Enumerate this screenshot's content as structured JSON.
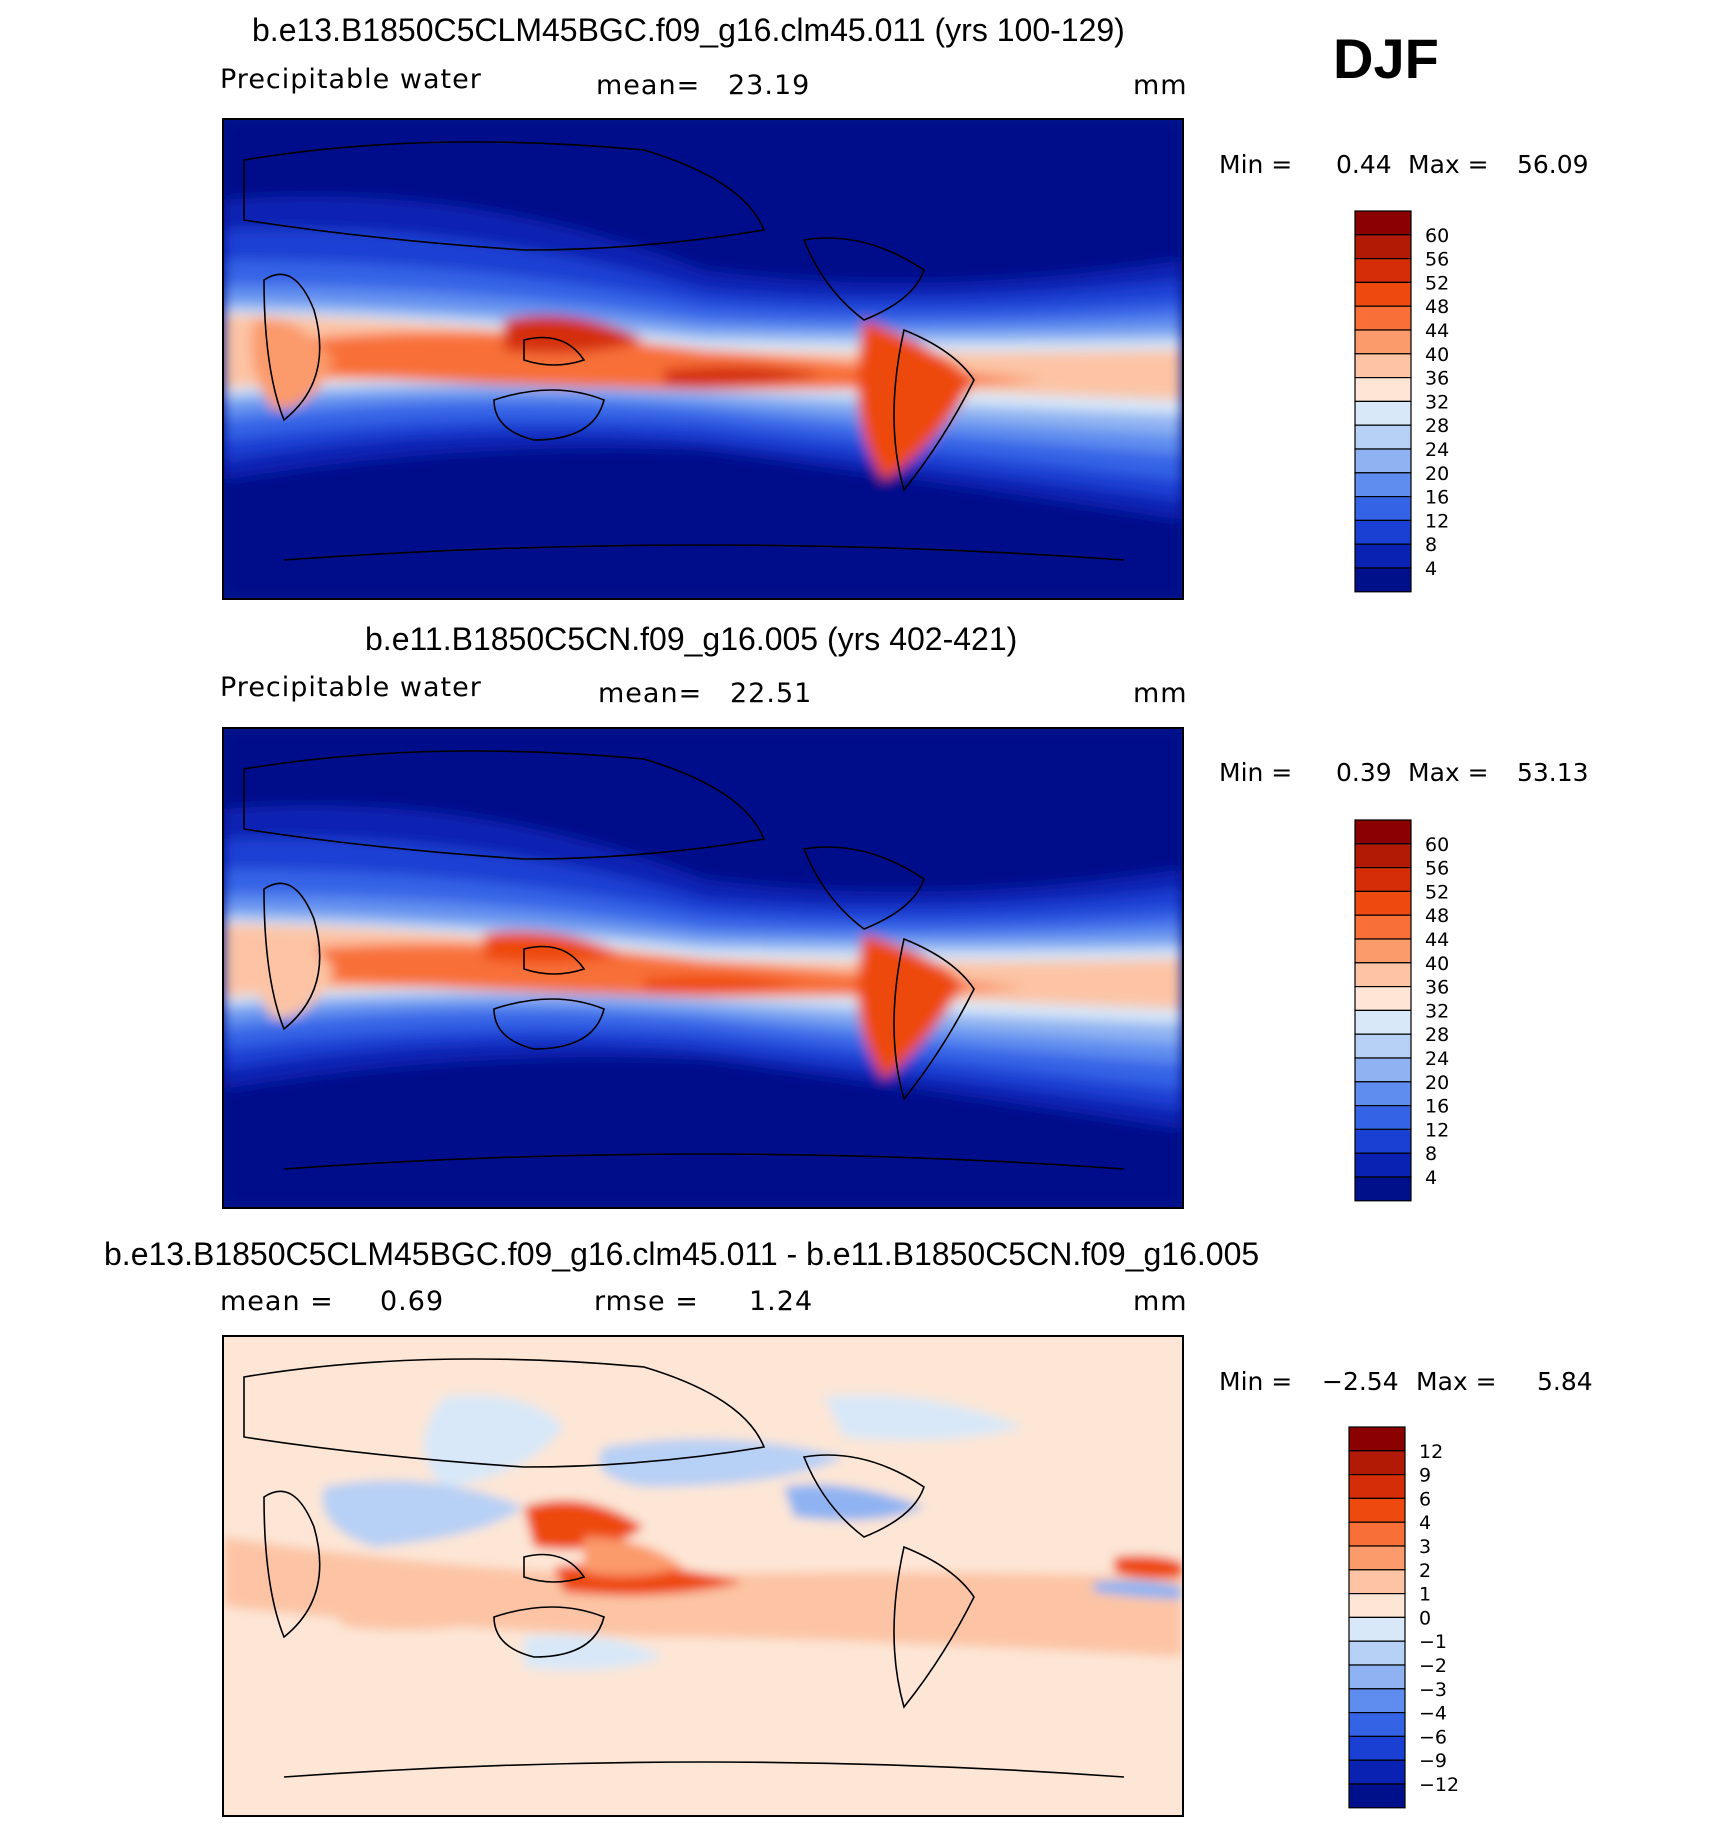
{
  "season": "DJF",
  "panels": [
    {
      "id": "p1",
      "title": "b.e13.B1850C5CLM45BGC.f09_g16.clm45.011 (yrs 100-129)",
      "variable": "Precipitable  water",
      "stat1_label": "mean=",
      "stat1_value": "23.19",
      "units": "mm",
      "min_label": "Min  =",
      "min_value": "0.44",
      "max_label": "Max  =",
      "max_value": "56.09",
      "colorbar": {
        "labels": [
          "60",
          "56",
          "52",
          "48",
          "44",
          "40",
          "36",
          "32",
          "28",
          "24",
          "20",
          "16",
          "12",
          "8",
          "4"
        ],
        "colors": [
          "#8b0000",
          "#b31a05",
          "#d42d08",
          "#ee4a10",
          "#f87038",
          "#fb9a6a",
          "#fcc4a4",
          "#fde6d6",
          "#d8e8f8",
          "#b7d0f5",
          "#8fb3f2",
          "#5f8def",
          "#3563e6",
          "#1a3fd3",
          "#0a22b2",
          "#000f8a"
        ]
      }
    },
    {
      "id": "p2",
      "title": "b.e11.B1850C5CN.f09_g16.005 (yrs 402-421)",
      "variable": "Precipitable  water",
      "stat1_label": "mean=",
      "stat1_value": "22.51",
      "units": "mm",
      "min_label": "Min  =",
      "min_value": "0.39",
      "max_label": "Max  =",
      "max_value": "53.13",
      "colorbar": {
        "labels": [
          "60",
          "56",
          "52",
          "48",
          "44",
          "40",
          "36",
          "32",
          "28",
          "24",
          "20",
          "16",
          "12",
          "8",
          "4"
        ],
        "colors": [
          "#8b0000",
          "#b31a05",
          "#d42d08",
          "#ee4a10",
          "#f87038",
          "#fb9a6a",
          "#fcc4a4",
          "#fde6d6",
          "#d8e8f8",
          "#b7d0f5",
          "#8fb3f2",
          "#5f8def",
          "#3563e6",
          "#1a3fd3",
          "#0a22b2",
          "#000f8a"
        ]
      }
    },
    {
      "id": "p3",
      "title": "b.e13.B1850C5CLM45BGC.f09_g16.clm45.011 - b.e11.B1850C5CN.f09_g16.005",
      "stat1_label": "mean  =",
      "stat1_value": "0.69",
      "stat2_label": "rmse  =",
      "stat2_value": "1.24",
      "units": "mm",
      "min_label": "Min  =",
      "min_value": "−2.54",
      "max_label": "Max  =",
      "max_value": "5.84",
      "colorbar": {
        "labels": [
          "12",
          "9",
          "6",
          "4",
          "3",
          "2",
          "1",
          "0",
          "−1",
          "−2",
          "−3",
          "−4",
          "−6",
          "−9",
          "−12"
        ],
        "colors": [
          "#8b0000",
          "#b31a05",
          "#d42d08",
          "#ee4a10",
          "#f87038",
          "#fb9a6a",
          "#fcc4a4",
          "#fde6d6",
          "#d8e8f8",
          "#b7d0f5",
          "#8fb3f2",
          "#5f8def",
          "#3563e6",
          "#1a3fd3",
          "#0a22b2",
          "#000f8a"
        ]
      }
    }
  ]
}
